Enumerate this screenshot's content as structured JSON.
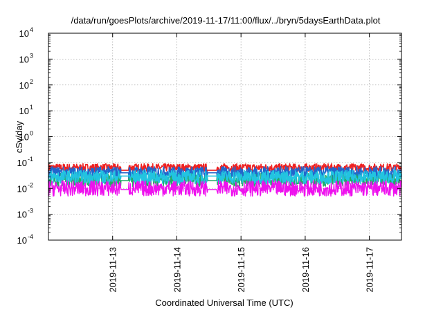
{
  "chart_data": {
    "type": "line",
    "title": "/data/run/goesPlots/archive/2019-11-17/11:00/flux/../bryn/5daysEarthData.plot",
    "xlabel": "Coordinated Universal Time (UTC)",
    "ylabel": "cSv/day",
    "yscale": "log",
    "ylim": [
      0.0001,
      10000
    ],
    "y_ticks": [
      {
        "value": 0.0001,
        "base": "10",
        "exp": "-4"
      },
      {
        "value": 0.001,
        "base": "10",
        "exp": "-3"
      },
      {
        "value": 0.01,
        "base": "10",
        "exp": "-2"
      },
      {
        "value": 0.1,
        "base": "10",
        "exp": "-1"
      },
      {
        "value": 1,
        "base": "10",
        "exp": "0"
      },
      {
        "value": 10,
        "base": "10",
        "exp": "1"
      },
      {
        "value": 100,
        "base": "10",
        "exp": "2"
      },
      {
        "value": 1000,
        "base": "10",
        "exp": "3"
      },
      {
        "value": 10000,
        "base": "10",
        "exp": "4"
      }
    ],
    "xlim": [
      "2019-11-12T00:00",
      "2019-11-17T12:00"
    ],
    "x_ticks": [
      "2019-11-13",
      "2019-11-14",
      "2019-11-15",
      "2019-11-16",
      "2019-11-17"
    ],
    "grid": true,
    "gaps": [
      [
        "2019-11-13T03:00",
        "2019-11-13T06:00"
      ],
      [
        "2019-11-14T11:30",
        "2019-11-14T15:00"
      ]
    ],
    "series": [
      {
        "color": "#ee2222",
        "level": 0.05,
        "spread": [
          0.045,
          0.09
        ]
      },
      {
        "color": "#22aa66",
        "level": 0.02,
        "spread": [
          0.012,
          0.04
        ]
      },
      {
        "color": "#2266cc",
        "level": 0.04,
        "spread": [
          0.025,
          0.07
        ]
      },
      {
        "color": "#22c4e0",
        "level": 0.03,
        "spread": [
          0.015,
          0.05
        ]
      },
      {
        "color": "#ee11ee",
        "level": 0.009,
        "spread": [
          0.005,
          0.02
        ]
      }
    ]
  }
}
